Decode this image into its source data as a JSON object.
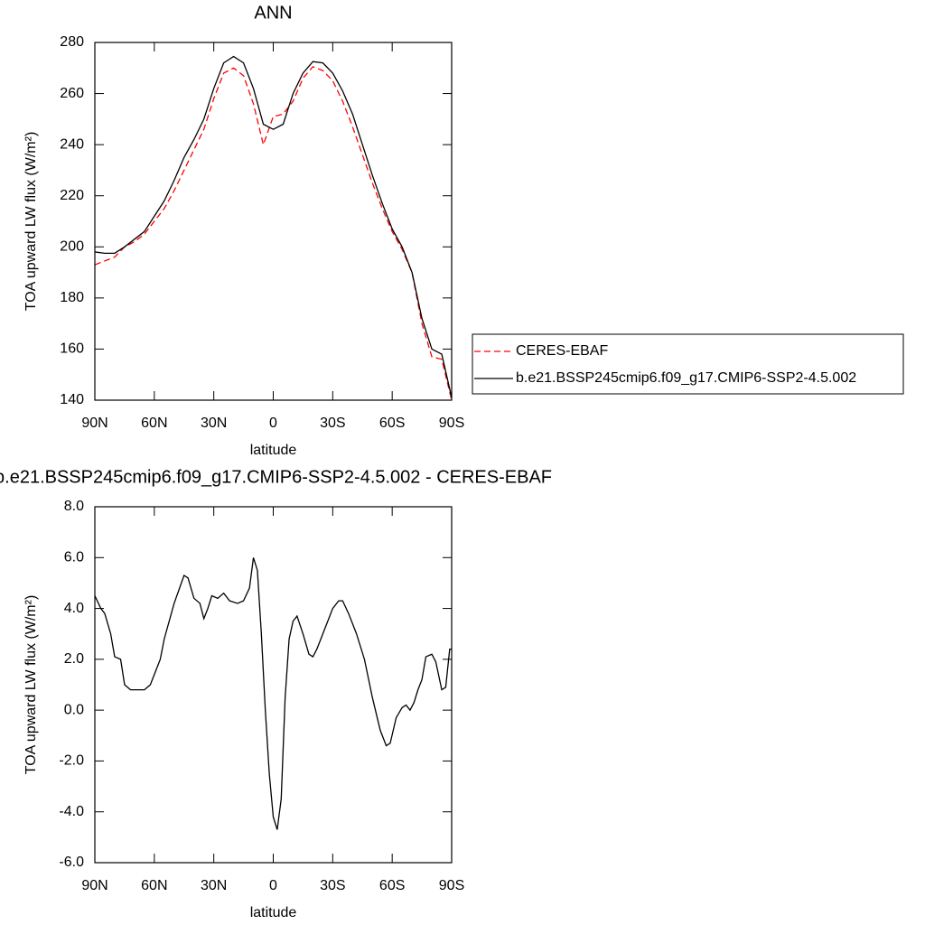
{
  "chart_data": [
    {
      "type": "line",
      "title": "ANN",
      "xlabel": "latitude",
      "ylabel": "TOA upward LW flux (W/m²)",
      "x": [
        90,
        85,
        80,
        75,
        70,
        65,
        60,
        55,
        50,
        45,
        40,
        35,
        30,
        25,
        20,
        15,
        10,
        5,
        0,
        -5,
        -10,
        -15,
        -20,
        -25,
        -30,
        -35,
        -40,
        -45,
        -50,
        -55,
        -60,
        -65,
        -70,
        -75,
        -80,
        -85,
        -90
      ],
      "xlim": [
        90,
        -90
      ],
      "xticks": [
        {
          "value": 90,
          "label": "90N"
        },
        {
          "value": 60,
          "label": "60N"
        },
        {
          "value": 30,
          "label": "30N"
        },
        0,
        {
          "value": -30,
          "label": "30S"
        },
        {
          "value": -60,
          "label": "60S"
        },
        {
          "value": -90,
          "label": "90S"
        }
      ],
      "ylim": [
        140,
        280
      ],
      "yticks": [
        140,
        160,
        180,
        200,
        220,
        240,
        260,
        280
      ],
      "series": [
        {
          "name": "CERES-EBAF",
          "color": "#ff0000",
          "dash": true,
          "values": [
            193,
            194.5,
            196,
            200,
            202,
            205,
            210,
            215,
            222,
            230,
            238,
            246,
            258,
            268,
            270,
            267,
            256,
            240,
            251,
            252,
            257,
            266,
            270.5,
            269,
            265,
            257,
            247,
            236,
            225,
            215,
            206,
            199,
            190,
            170,
            157,
            156,
            140
          ]
        },
        {
          "name": "b.e21.BSSP245cmip6.f09_g17.CMIP6-SSP2-4.5.002",
          "color": "#000000",
          "dash": false,
          "values": [
            198,
            197.5,
            197.5,
            200,
            203,
            206,
            212,
            218,
            226,
            235,
            242,
            250,
            262,
            272,
            274.5,
            272,
            262,
            248,
            246,
            248,
            260,
            268,
            272.5,
            272,
            268,
            261,
            252,
            240,
            228,
            217,
            207,
            200,
            190,
            172,
            160,
            158,
            141
          ]
        }
      ]
    },
    {
      "type": "line",
      "title": "b.e21.BSSP245cmip6.f09_g17.CMIP6-SSP2-4.5.002 - CERES-EBAF",
      "xlabel": "latitude",
      "ylabel": "TOA upward LW flux (W/m²)",
      "x": [
        90,
        87,
        85,
        82,
        80,
        77,
        75,
        72,
        70,
        65,
        62,
        60,
        57,
        55,
        50,
        45,
        43,
        40,
        37,
        35,
        33,
        31,
        28,
        25,
        22,
        18,
        15,
        12,
        10,
        8,
        6,
        4,
        2,
        0,
        -2,
        -4,
        -6,
        -8,
        -10,
        -12,
        -15,
        -18,
        -20,
        -22,
        -25,
        -28,
        -30,
        -33,
        -35,
        -38,
        -42,
        -46,
        -50,
        -54,
        -57,
        -59,
        -62,
        -65,
        -67,
        -69,
        -71,
        -73,
        -75,
        -77,
        -80,
        -82,
        -85,
        -87,
        -89,
        -90
      ],
      "xlim": [
        90,
        -90
      ],
      "xticks": [
        {
          "value": 90,
          "label": "90N"
        },
        {
          "value": 60,
          "label": "60N"
        },
        {
          "value": 30,
          "label": "30N"
        },
        0,
        {
          "value": -30,
          "label": "30S"
        },
        {
          "value": -60,
          "label": "60S"
        },
        {
          "value": -90,
          "label": "90S"
        }
      ],
      "ylim": [
        -6,
        8
      ],
      "yticks": [
        {
          "value": -6,
          "label": "-6.0"
        },
        {
          "value": -4,
          "label": "-4.0"
        },
        {
          "value": -2,
          "label": "-2.0"
        },
        {
          "value": 0,
          "label": "0.0"
        },
        {
          "value": 2,
          "label": "2.0"
        },
        {
          "value": 4,
          "label": "4.0"
        },
        {
          "value": 6,
          "label": "6.0"
        },
        {
          "value": 8,
          "label": "8.0"
        }
      ],
      "series": [
        {
          "color": "#000000",
          "dash": false,
          "values": [
            4.5,
            4.0,
            3.8,
            3.0,
            2.1,
            2.0,
            1.0,
            0.8,
            0.8,
            0.8,
            1.0,
            1.4,
            2.0,
            2.8,
            4.2,
            5.3,
            5.2,
            4.4,
            4.2,
            3.6,
            4.0,
            4.5,
            4.4,
            4.6,
            4.3,
            4.2,
            4.3,
            4.8,
            6.0,
            5.5,
            3.0,
            0.0,
            -2.5,
            -4.2,
            -4.7,
            -3.5,
            0.5,
            2.8,
            3.5,
            3.7,
            3.0,
            2.2,
            2.1,
            2.4,
            3.0,
            3.6,
            4.0,
            4.3,
            4.3,
            3.8,
            3.0,
            2.0,
            0.5,
            -0.8,
            -1.4,
            -1.3,
            -0.3,
            0.1,
            0.2,
            0.0,
            0.3,
            0.8,
            1.2,
            2.1,
            2.2,
            1.9,
            0.8,
            0.9,
            2.4,
            2.4
          ]
        }
      ]
    }
  ]
}
